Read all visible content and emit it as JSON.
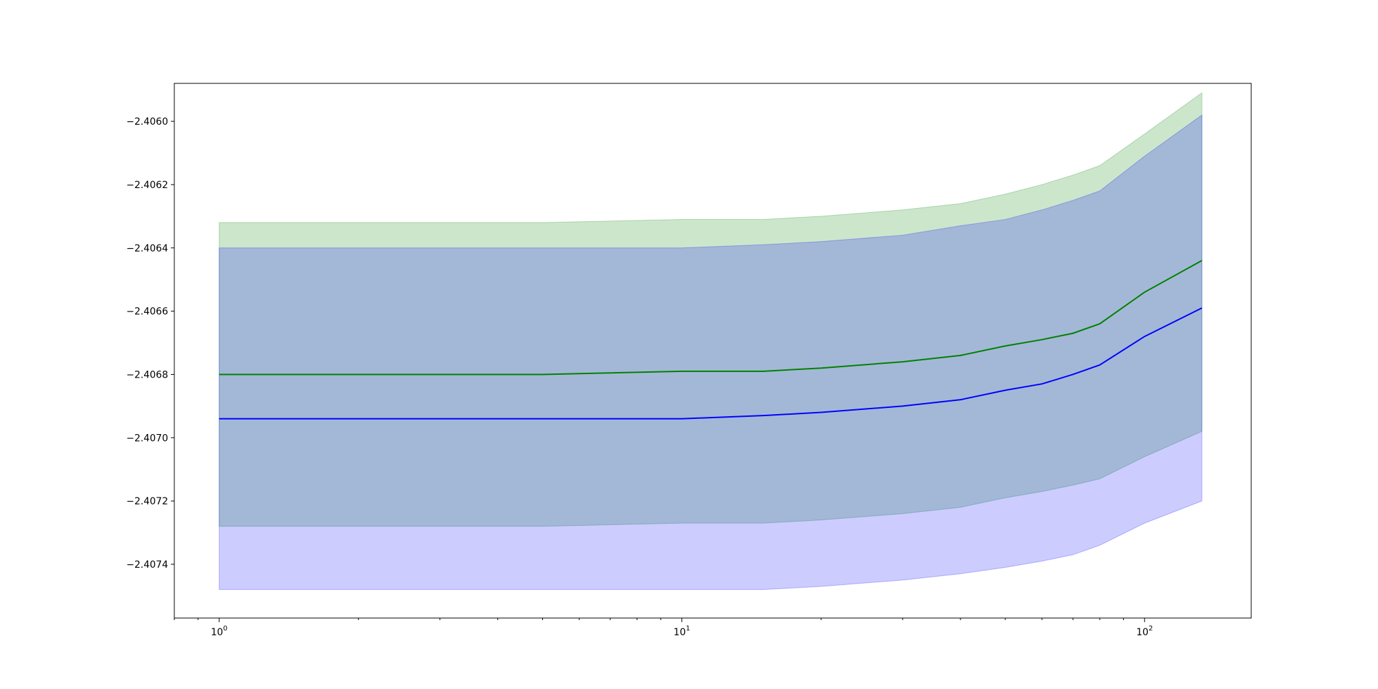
{
  "chart_data": {
    "type": "line",
    "title": "",
    "xlabel": "",
    "ylabel": "",
    "xscale": "log",
    "xlim": [
      0.8,
      170
    ],
    "ylim": [
      -2.40757,
      -2.40588
    ],
    "grid": false,
    "legend": "none",
    "x_ticks": [
      {
        "value": 1,
        "base": "10",
        "exp": "0"
      },
      {
        "value": 10,
        "base": "10",
        "exp": "1"
      },
      {
        "value": 100,
        "base": "10",
        "exp": "2"
      }
    ],
    "y_ticks": [
      {
        "value": -2.406,
        "label": "−2.4060"
      },
      {
        "value": -2.4062,
        "label": "−2.4062"
      },
      {
        "value": -2.4064,
        "label": "−2.4064"
      },
      {
        "value": -2.4066,
        "label": "−2.4066"
      },
      {
        "value": -2.4068,
        "label": "−2.4068"
      },
      {
        "value": -2.407,
        "label": "−2.4070"
      },
      {
        "value": -2.4072,
        "label": "−2.4072"
      },
      {
        "value": -2.4074,
        "label": "−2.4074"
      }
    ],
    "x": [
      1,
      2,
      5,
      10,
      15,
      20,
      30,
      40,
      50,
      60,
      70,
      80,
      100,
      133
    ],
    "series": [
      {
        "color": "#008000",
        "band_color": "#008000",
        "band_opacity": 0.2,
        "line": [
          -2.4068,
          -2.4068,
          -2.4068,
          -2.40679,
          -2.40679,
          -2.40678,
          -2.40676,
          -2.40674,
          -2.40671,
          -2.40669,
          -2.40667,
          -2.40664,
          -2.40654,
          -2.40644
        ],
        "upper": [
          -2.40632,
          -2.40632,
          -2.40632,
          -2.40631,
          -2.40631,
          -2.4063,
          -2.40628,
          -2.40626,
          -2.40623,
          -2.4062,
          -2.40617,
          -2.40614,
          -2.40604,
          -2.40591
        ],
        "lower": [
          -2.40728,
          -2.40728,
          -2.40728,
          -2.40727,
          -2.40727,
          -2.40726,
          -2.40724,
          -2.40722,
          -2.40719,
          -2.40717,
          -2.40715,
          -2.40713,
          -2.40706,
          -2.40698
        ]
      },
      {
        "color": "#0000ff",
        "band_color": "#0000ff",
        "band_opacity": 0.2,
        "line": [
          -2.40694,
          -2.40694,
          -2.40694,
          -2.40694,
          -2.40693,
          -2.40692,
          -2.4069,
          -2.40688,
          -2.40685,
          -2.40683,
          -2.4068,
          -2.40677,
          -2.40668,
          -2.40659
        ],
        "upper": [
          -2.4064,
          -2.4064,
          -2.4064,
          -2.4064,
          -2.40639,
          -2.40638,
          -2.40636,
          -2.40633,
          -2.40631,
          -2.40628,
          -2.40625,
          -2.40622,
          -2.40611,
          -2.40598
        ],
        "lower": [
          -2.40748,
          -2.40748,
          -2.40748,
          -2.40748,
          -2.40748,
          -2.40747,
          -2.40745,
          -2.40743,
          -2.40741,
          -2.40739,
          -2.40737,
          -2.40734,
          -2.40727,
          -2.4072
        ]
      }
    ]
  }
}
